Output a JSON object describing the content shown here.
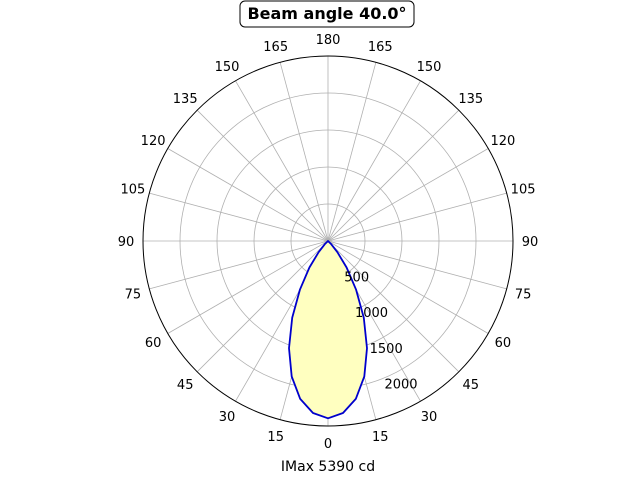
{
  "chart_data": {
    "type": "polar",
    "title": "Beam angle 40.0°",
    "xlabel": "IMax 5390 cd",
    "ylabel": "",
    "rlim": [
      0,
      2400
    ],
    "r_ticks": [
      "500",
      "1000",
      "1500",
      "2000"
    ],
    "r_tick_values": [
      500,
      1000,
      1500,
      2000
    ],
    "angle_ticks": {
      "bottom": "0",
      "top": "180",
      "right": [
        "15",
        "30",
        "45",
        "60",
        "75",
        "90",
        "105",
        "120",
        "135",
        "150",
        "165"
      ],
      "left": [
        "15",
        "30",
        "45",
        "60",
        "75",
        "90",
        "105",
        "120",
        "135",
        "150",
        "165"
      ]
    },
    "grid": true,
    "series": [
      {
        "color": "#0000cc",
        "fill": "#ffffc0",
        "angles_deg": [
          0,
          5,
          10,
          15,
          20,
          25,
          30,
          35,
          40,
          45,
          50
        ],
        "values": [
          2300,
          2240,
          2080,
          1820,
          1480,
          1100,
          730,
          420,
          190,
          60,
          0
        ]
      }
    ]
  }
}
